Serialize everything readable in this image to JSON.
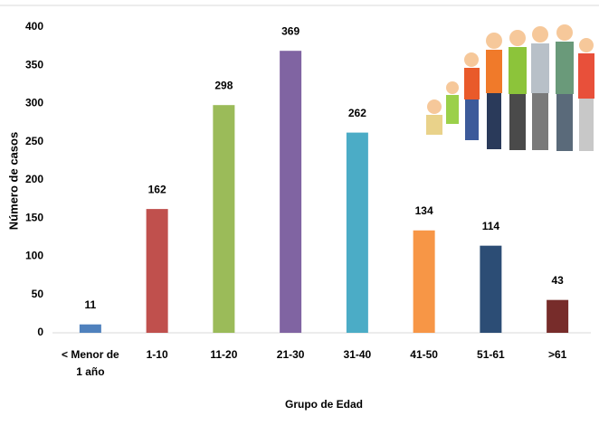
{
  "chart_data": {
    "type": "bar",
    "x_label": "Grupo de Edad",
    "y_label": "Número de casos",
    "categories": [
      "< Menor de 1 año",
      "1-10",
      "11-20",
      "21-30",
      "31-40",
      "41-50",
      "51-61",
      ">61"
    ],
    "values": [
      11,
      162,
      298,
      369,
      262,
      134,
      114,
      43
    ],
    "colors": [
      "#4f81bd",
      "#c0504d",
      "#9bbb59",
      "#8064a2",
      "#4bacc6",
      "#f79646",
      "#2c4d75",
      "#772c2a"
    ],
    "ylim": [
      0,
      400
    ],
    "yticks": [
      0,
      50,
      100,
      150,
      200,
      250,
      300,
      350,
      400
    ],
    "grid": false
  }
}
